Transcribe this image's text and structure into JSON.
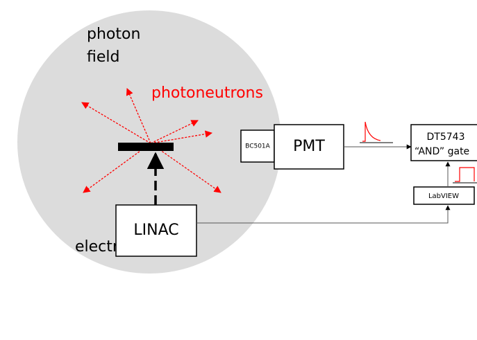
{
  "labels": {
    "photon_field": [
      "photon",
      "field"
    ],
    "photoneutrons": "photoneutrons",
    "electrons": "electrons",
    "linac": "LINAC",
    "detector": "BC501A",
    "pmt": "PMT",
    "digitizer": [
      "DT5743",
      "“AND” gate"
    ],
    "labview": "LabVIEW"
  }
}
